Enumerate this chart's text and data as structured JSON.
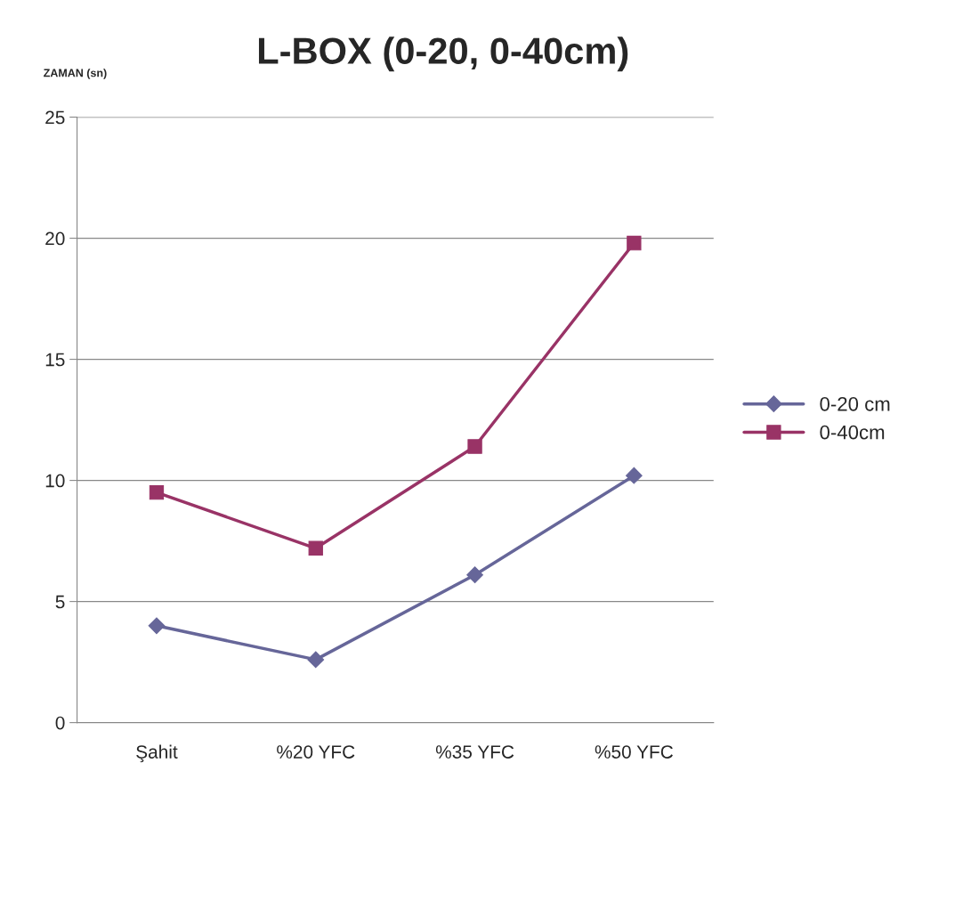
{
  "chart_data": {
    "type": "line",
    "title": "L-BOX (0-20, 0-40cm)",
    "ylabel": "ZAMAN (sn)",
    "categories": [
      "Şahit",
      "%20 YFC",
      "%35 YFC",
      "%50 YFC"
    ],
    "series": [
      {
        "name": "0-20 cm",
        "color": "#666699",
        "marker": "diamond",
        "values": [
          4.0,
          2.6,
          6.1,
          10.2
        ]
      },
      {
        "name": "0-40cm",
        "color": "#993366",
        "marker": "square",
        "values": [
          9.5,
          7.2,
          11.4,
          19.8
        ]
      }
    ],
    "ylim": [
      0,
      25
    ],
    "yticks": [
      0,
      5,
      10,
      15,
      20,
      25
    ],
    "grid": "y",
    "legend": "right",
    "line_style": "solid"
  }
}
